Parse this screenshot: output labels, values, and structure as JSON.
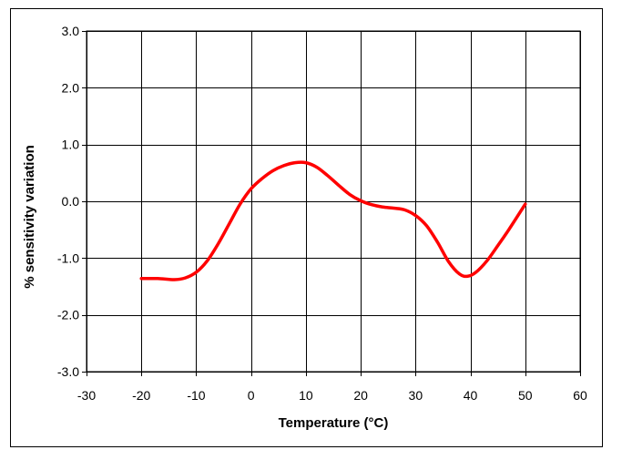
{
  "chart_data": {
    "type": "line",
    "xlabel": "Temperature (°C)",
    "ylabel": "% sensitivity variation",
    "xlim": [
      -30,
      60
    ],
    "ylim": [
      -3.0,
      3.0
    ],
    "xticks": [
      -30,
      -20,
      -10,
      0,
      10,
      20,
      30,
      40,
      50,
      60
    ],
    "yticks": [
      -3.0,
      -2.0,
      -1.0,
      0.0,
      1.0,
      2.0,
      3.0
    ],
    "xtick_labels": [
      "-30",
      "-20",
      "-10",
      "0",
      "10",
      "20",
      "30",
      "40",
      "50",
      "60"
    ],
    "ytick_labels": [
      "-3.0",
      "-2.0",
      "-1.0",
      "0.0",
      "1.0",
      "2.0",
      "3.0"
    ],
    "grid": true,
    "series": [
      {
        "color": "#ff0000",
        "x": [
          -20,
          -17,
          -14,
          -12,
          -10,
          -8,
          -6,
          -4,
          -2,
          0,
          2,
          4,
          6,
          8,
          10,
          12,
          14,
          16,
          18,
          20,
          22,
          24,
          26,
          28,
          30,
          32,
          34,
          36,
          38,
          39.5,
          41,
          43,
          45,
          47,
          50
        ],
        "y": [
          -1.36,
          -1.36,
          -1.38,
          -1.35,
          -1.25,
          -1.05,
          -0.75,
          -0.4,
          -0.05,
          0.22,
          0.4,
          0.54,
          0.63,
          0.68,
          0.68,
          0.6,
          0.45,
          0.28,
          0.12,
          0.01,
          -0.06,
          -0.1,
          -0.12,
          -0.15,
          -0.25,
          -0.43,
          -0.72,
          -1.06,
          -1.28,
          -1.32,
          -1.25,
          -1.05,
          -0.78,
          -0.5,
          -0.05
        ]
      }
    ]
  }
}
